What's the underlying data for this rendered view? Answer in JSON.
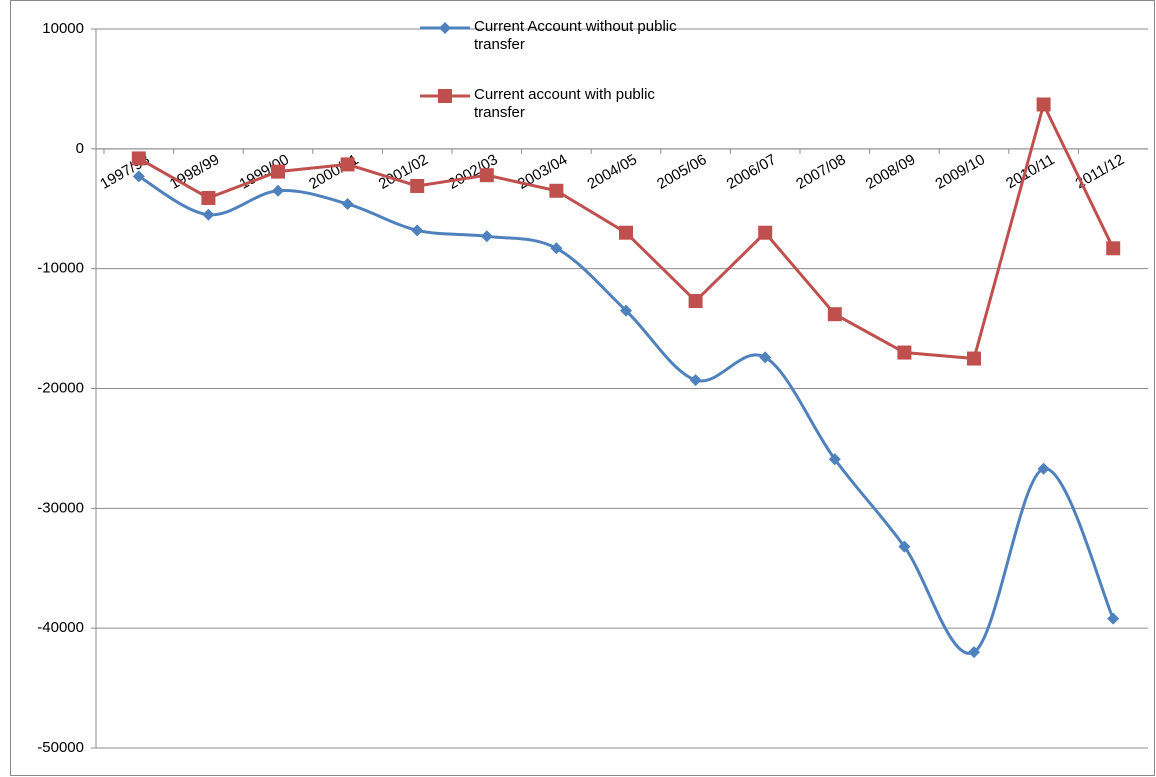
{
  "chart_data": {
    "type": "line",
    "categories": [
      "1997/98",
      "1998/99",
      "1999/00",
      "2000/01",
      "2001/02",
      "2002/03",
      "2003/04",
      "2004/05",
      "2005/06",
      "2006/07",
      "2007/08",
      "2008/09",
      "2009/10",
      "2010/11",
      "2011/12"
    ],
    "series": [
      {
        "name": "Current Account without public transfer",
        "color": "#4f81bd",
        "marker": "diamond",
        "smooth": true,
        "values": [
          -2300,
          -5500,
          -3500,
          -4600,
          -6800,
          -7300,
          -8300,
          -13500,
          -19300,
          -17400,
          -25900,
          -33200,
          -42000,
          -26700,
          -39200
        ]
      },
      {
        "name": "Current account with public transfer",
        "color": "#c0504d",
        "marker": "square",
        "smooth": false,
        "values": [
          -800,
          -4100,
          -1900,
          -1300,
          -3100,
          -2200,
          -3500,
          -7000,
          -12700,
          -7000,
          -13800,
          -17000,
          -17500,
          3700,
          -8300
        ]
      }
    ],
    "ylim": [
      -50000,
      10000
    ],
    "yticks": [
      -50000,
      -40000,
      -30000,
      -20000,
      -10000,
      0,
      10000
    ],
    "grid": true
  }
}
